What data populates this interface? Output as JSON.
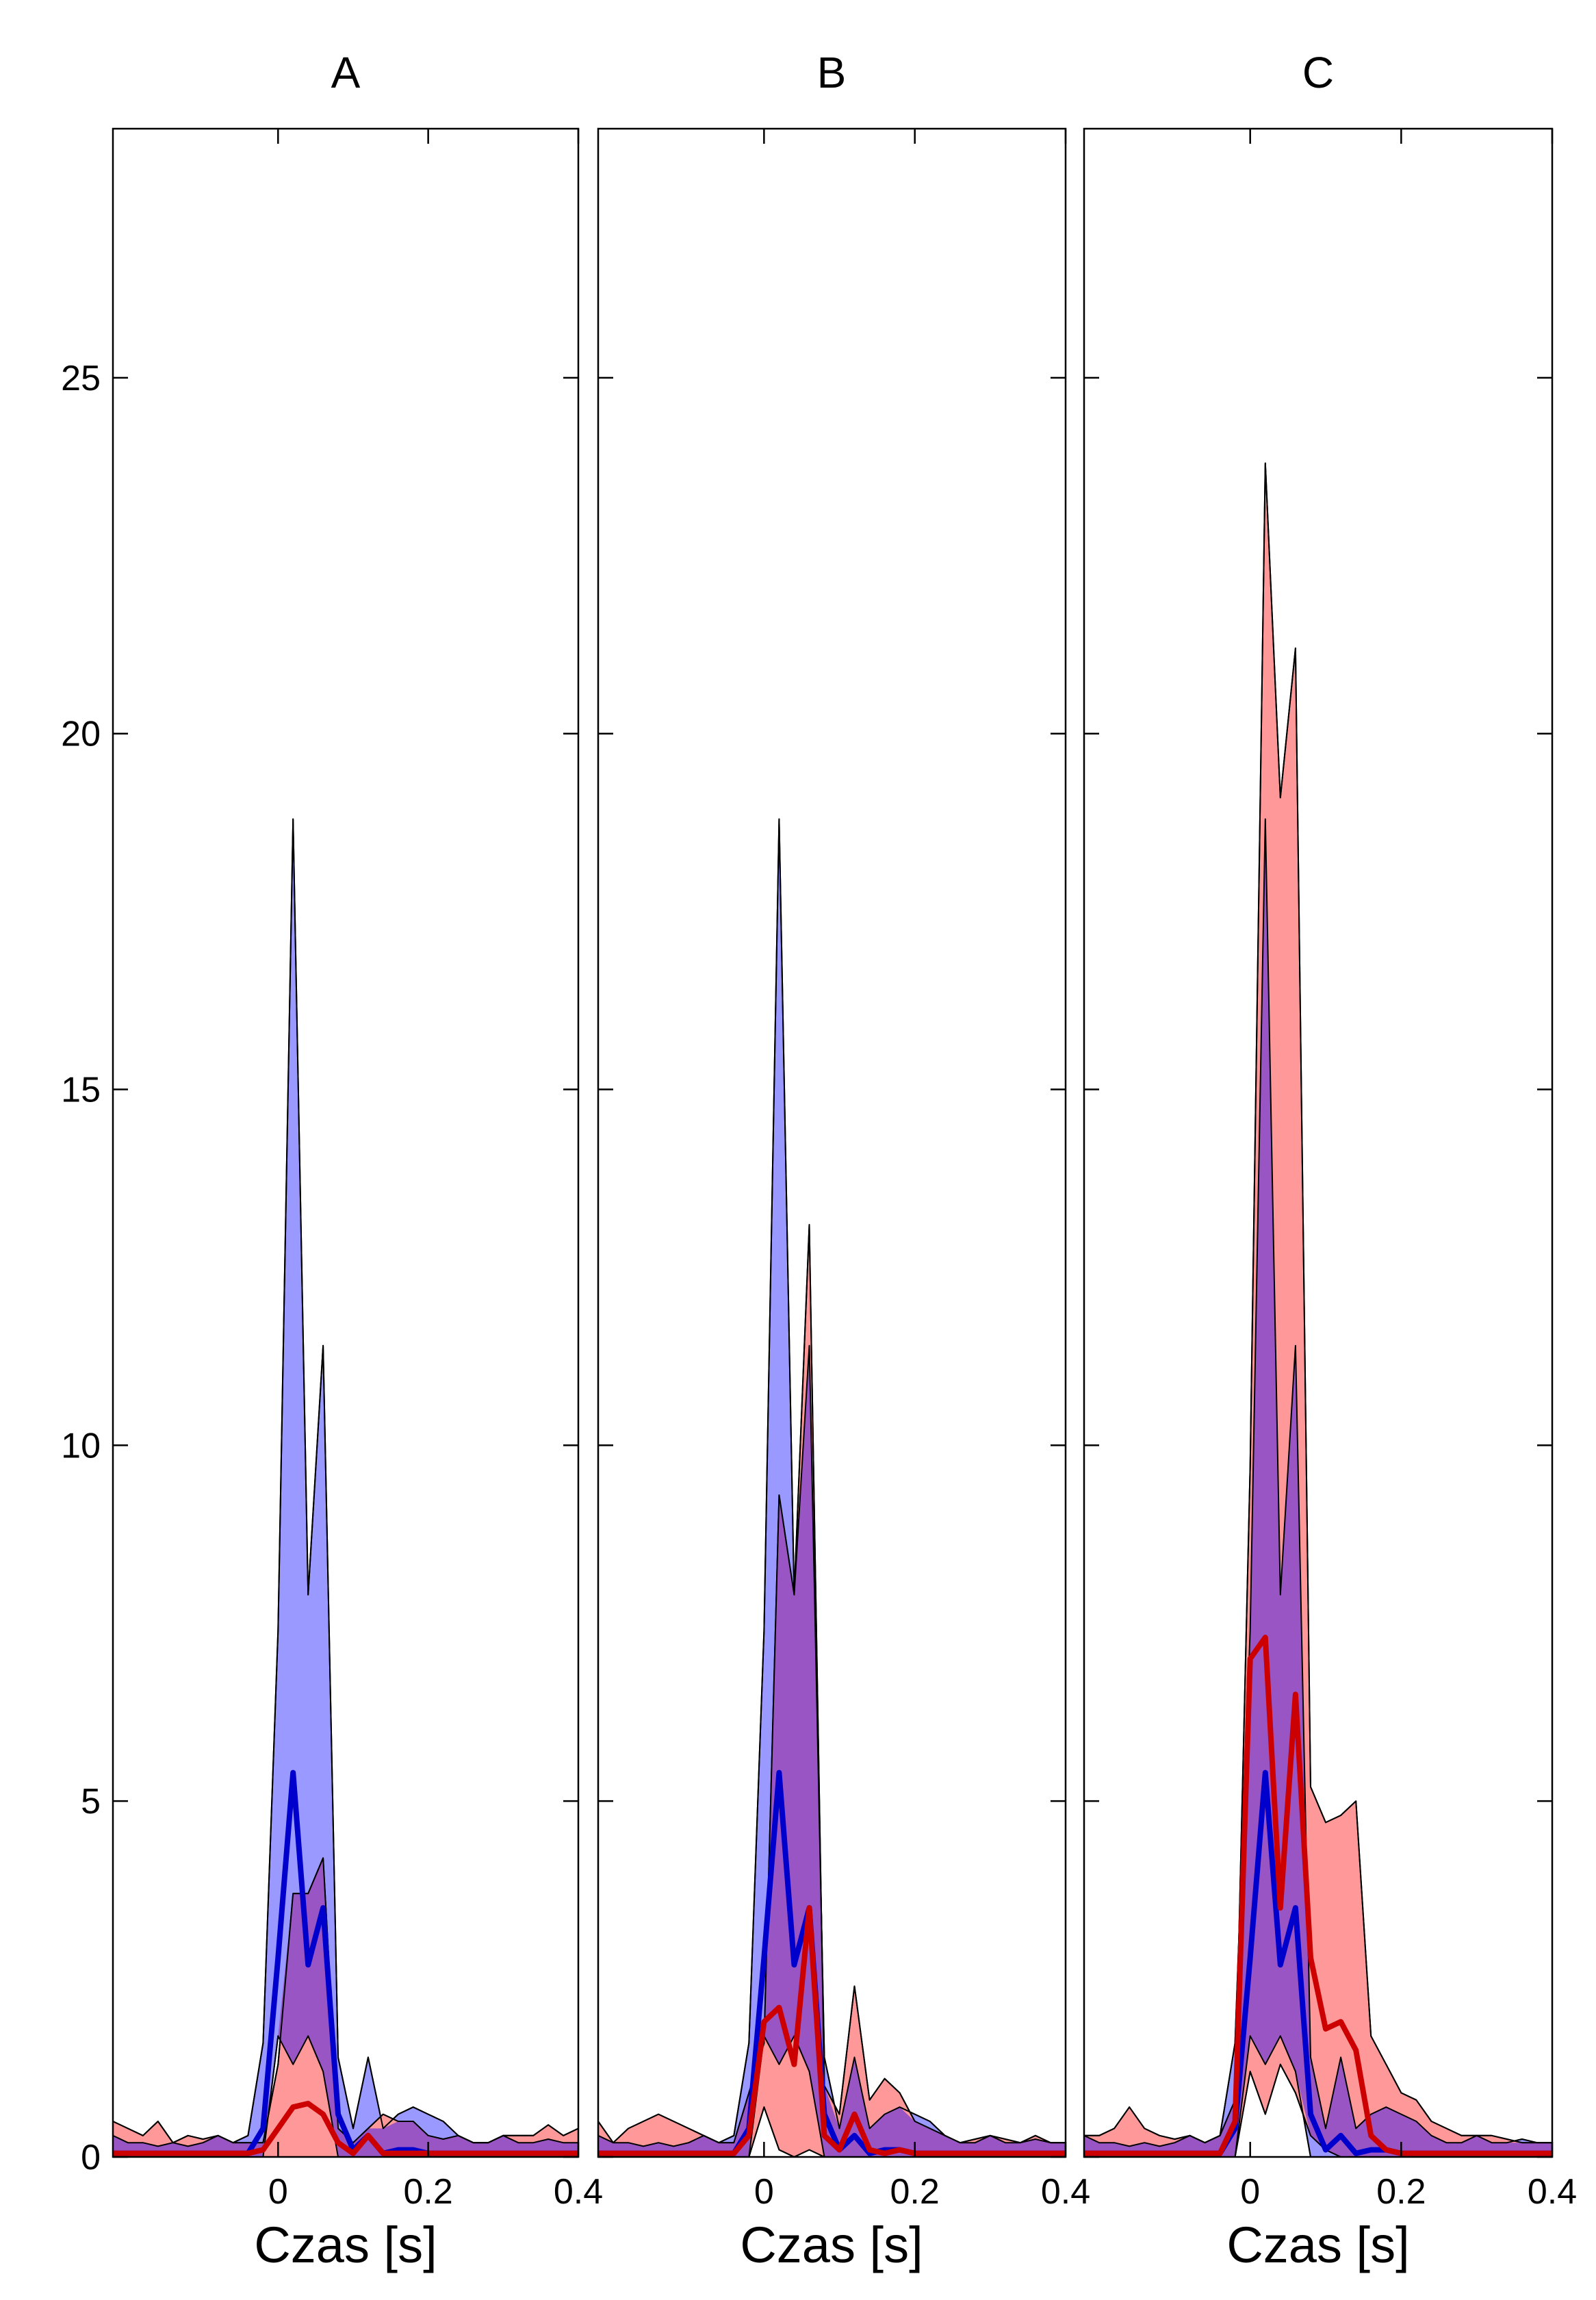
{
  "colors": {
    "blue_fill": "#9999ff",
    "red_fill": "#ff9999",
    "overlap_fill": "#9955c4",
    "blue_line": "#0000cc",
    "red_line": "#cc0000",
    "outline": "#000000"
  },
  "chart_data": [
    {
      "type": "area",
      "title": "A",
      "xlabel": "Czas [s]",
      "ylabel": "",
      "xlim": [
        -0.22,
        0.4
      ],
      "ylim": [
        0,
        28.5
      ],
      "x_ticks": [
        0,
        0.2,
        0.4
      ],
      "x_tick_labels": [
        "0",
        "0.2",
        "0.4"
      ],
      "y_ticks": [
        0,
        5,
        10,
        15,
        20,
        25
      ],
      "y_tick_labels": [
        "0",
        "5",
        "10",
        "15",
        "20",
        "25"
      ],
      "show_y_tick_labels": true,
      "x": [
        -0.22,
        -0.2,
        -0.18,
        -0.16,
        -0.14,
        -0.12,
        -0.1,
        -0.08,
        -0.06,
        -0.04,
        -0.02,
        0.0,
        0.02,
        0.04,
        0.06,
        0.08,
        0.1,
        0.12,
        0.14,
        0.16,
        0.18,
        0.2,
        0.22,
        0.24,
        0.26,
        0.28,
        0.3,
        0.32,
        0.34,
        0.36,
        0.38,
        0.4
      ],
      "series": [
        {
          "color": "blue",
          "mean": [
            0.05,
            0.05,
            0.05,
            0.05,
            0.05,
            0.05,
            0.05,
            0.05,
            0.05,
            0.05,
            0.4,
            2.8,
            5.4,
            2.7,
            3.5,
            0.6,
            0.1,
            0.3,
            0.05,
            0.1,
            0.1,
            0.05,
            0.05,
            0.05,
            0.05,
            0.05,
            0.05,
            0.05,
            0.05,
            0.05,
            0.05,
            0.05
          ],
          "upper": [
            0.3,
            0.2,
            0.2,
            0.15,
            0.2,
            0.15,
            0.2,
            0.3,
            0.2,
            0.3,
            1.6,
            7.4,
            18.8,
            7.9,
            11.4,
            1.4,
            0.4,
            1.4,
            0.4,
            0.6,
            0.7,
            0.6,
            0.5,
            0.3,
            0.2,
            0.2,
            0.3,
            0.2,
            0.2,
            0.25,
            0.2,
            0.2
          ],
          "lower": [
            0.0,
            0.0,
            0.0,
            0.0,
            0.0,
            0.0,
            0.0,
            0.0,
            0.0,
            0.0,
            0.0,
            1.7,
            1.3,
            1.7,
            1.2,
            0.0,
            0.0,
            0.0,
            0.0,
            0.0,
            0.0,
            0.0,
            0.0,
            0.0,
            0.0,
            0.0,
            0.0,
            0.0,
            0.0,
            0.0,
            0.0,
            0.0
          ]
        },
        {
          "color": "red",
          "mean": [
            0.05,
            0.05,
            0.05,
            0.05,
            0.05,
            0.05,
            0.05,
            0.05,
            0.05,
            0.05,
            0.1,
            0.4,
            0.7,
            0.75,
            0.6,
            0.2,
            0.05,
            0.3,
            0.05,
            0.05,
            0.05,
            0.05,
            0.05,
            0.05,
            0.05,
            0.05,
            0.05,
            0.05,
            0.05,
            0.05,
            0.05,
            0.05
          ],
          "upper": [
            0.5,
            0.4,
            0.3,
            0.5,
            0.2,
            0.3,
            0.25,
            0.3,
            0.2,
            0.2,
            0.2,
            1.3,
            3.7,
            3.7,
            4.2,
            0.4,
            0.2,
            0.4,
            0.6,
            0.5,
            0.5,
            0.3,
            0.25,
            0.3,
            0.2,
            0.2,
            0.3,
            0.3,
            0.3,
            0.45,
            0.3,
            0.4
          ],
          "lower": [
            0.0,
            0.0,
            0.0,
            0.0,
            0.0,
            0.0,
            0.0,
            0.0,
            0.0,
            0.0,
            0.0,
            0.0,
            0.0,
            0.0,
            0.0,
            0.0,
            0.0,
            0.0,
            0.0,
            0.0,
            0.0,
            0.0,
            0.0,
            0.0,
            0.0,
            0.0,
            0.0,
            0.0,
            0.0,
            0.0,
            0.0,
            0.0
          ]
        }
      ]
    },
    {
      "type": "area",
      "title": "B",
      "xlabel": "Czas [s]",
      "ylabel": "",
      "xlim": [
        -0.22,
        0.4
      ],
      "ylim": [
        0,
        28.5
      ],
      "x_ticks": [
        0,
        0.2,
        0.4
      ],
      "x_tick_labels": [
        "0",
        "0.2",
        "0.4"
      ],
      "y_ticks": [
        0,
        5,
        10,
        15,
        20,
        25
      ],
      "y_tick_labels": [
        "0",
        "5",
        "10",
        "15",
        "20",
        "25"
      ],
      "show_y_tick_labels": false,
      "x": [
        -0.22,
        -0.2,
        -0.18,
        -0.16,
        -0.14,
        -0.12,
        -0.1,
        -0.08,
        -0.06,
        -0.04,
        -0.02,
        0.0,
        0.02,
        0.04,
        0.06,
        0.08,
        0.1,
        0.12,
        0.14,
        0.16,
        0.18,
        0.2,
        0.22,
        0.24,
        0.26,
        0.28,
        0.3,
        0.32,
        0.34,
        0.36,
        0.38,
        0.4
      ],
      "series": [
        {
          "color": "blue",
          "mean": [
            0.05,
            0.05,
            0.05,
            0.05,
            0.05,
            0.05,
            0.05,
            0.05,
            0.05,
            0.05,
            0.4,
            2.8,
            5.4,
            2.7,
            3.5,
            0.6,
            0.1,
            0.3,
            0.05,
            0.1,
            0.1,
            0.05,
            0.05,
            0.05,
            0.05,
            0.05,
            0.05,
            0.05,
            0.05,
            0.05,
            0.05,
            0.05
          ],
          "upper": [
            0.3,
            0.2,
            0.2,
            0.15,
            0.2,
            0.15,
            0.2,
            0.3,
            0.2,
            0.3,
            1.6,
            7.4,
            18.8,
            7.9,
            11.4,
            1.4,
            0.4,
            1.4,
            0.4,
            0.6,
            0.7,
            0.6,
            0.5,
            0.3,
            0.2,
            0.2,
            0.3,
            0.2,
            0.2,
            0.25,
            0.2,
            0.2
          ],
          "lower": [
            0.0,
            0.0,
            0.0,
            0.0,
            0.0,
            0.0,
            0.0,
            0.0,
            0.0,
            0.0,
            0.0,
            1.7,
            1.3,
            1.7,
            1.2,
            0.0,
            0.0,
            0.0,
            0.0,
            0.0,
            0.0,
            0.0,
            0.0,
            0.0,
            0.0,
            0.0,
            0.0,
            0.0,
            0.0,
            0.0,
            0.0,
            0.0
          ]
        },
        {
          "color": "red",
          "mean": [
            0.05,
            0.05,
            0.05,
            0.05,
            0.05,
            0.05,
            0.05,
            0.05,
            0.05,
            0.05,
            0.3,
            1.9,
            2.1,
            1.3,
            3.5,
            0.3,
            0.1,
            0.6,
            0.1,
            0.05,
            0.1,
            0.05,
            0.05,
            0.05,
            0.05,
            0.05,
            0.05,
            0.05,
            0.05,
            0.05,
            0.05,
            0.05
          ],
          "upper": [
            0.5,
            0.2,
            0.4,
            0.5,
            0.6,
            0.5,
            0.4,
            0.3,
            0.2,
            0.2,
            0.9,
            1.6,
            9.3,
            7.9,
            13.1,
            1.0,
            0.6,
            2.4,
            0.8,
            1.1,
            0.9,
            0.5,
            0.4,
            0.3,
            0.2,
            0.25,
            0.3,
            0.25,
            0.2,
            0.3,
            0.2,
            0.2
          ],
          "lower": [
            0.0,
            0.0,
            0.0,
            0.0,
            0.0,
            0.0,
            0.0,
            0.0,
            0.0,
            0.0,
            0.0,
            0.7,
            0.1,
            0.0,
            0.1,
            0.0,
            0.0,
            0.0,
            0.0,
            0.0,
            0.0,
            0.0,
            0.0,
            0.0,
            0.0,
            0.0,
            0.0,
            0.0,
            0.0,
            0.0,
            0.0,
            0.0
          ]
        }
      ]
    },
    {
      "type": "area",
      "title": "C",
      "xlabel": "Czas [s]",
      "ylabel": "",
      "xlim": [
        -0.22,
        0.4
      ],
      "ylim": [
        0,
        28.5
      ],
      "x_ticks": [
        0,
        0.2,
        0.4
      ],
      "x_tick_labels": [
        "0",
        "0.2",
        "0.4"
      ],
      "y_ticks": [
        0,
        5,
        10,
        15,
        20,
        25
      ],
      "y_tick_labels": [
        "0",
        "5",
        "10",
        "15",
        "20",
        "25"
      ],
      "show_y_tick_labels": false,
      "x": [
        -0.22,
        -0.2,
        -0.18,
        -0.16,
        -0.14,
        -0.12,
        -0.1,
        -0.08,
        -0.06,
        -0.04,
        -0.02,
        0.0,
        0.02,
        0.04,
        0.06,
        0.08,
        0.1,
        0.12,
        0.14,
        0.16,
        0.18,
        0.2,
        0.22,
        0.24,
        0.26,
        0.28,
        0.3,
        0.32,
        0.34,
        0.36,
        0.38,
        0.4
      ],
      "series": [
        {
          "color": "blue",
          "mean": [
            0.05,
            0.05,
            0.05,
            0.05,
            0.05,
            0.05,
            0.05,
            0.05,
            0.05,
            0.05,
            0.4,
            2.8,
            5.4,
            2.7,
            3.5,
            0.6,
            0.1,
            0.3,
            0.05,
            0.1,
            0.1,
            0.05,
            0.05,
            0.05,
            0.05,
            0.05,
            0.05,
            0.05,
            0.05,
            0.05,
            0.05,
            0.05
          ],
          "upper": [
            0.3,
            0.2,
            0.2,
            0.15,
            0.2,
            0.15,
            0.2,
            0.3,
            0.2,
            0.3,
            1.6,
            7.4,
            18.8,
            7.9,
            11.4,
            1.4,
            0.4,
            1.4,
            0.4,
            0.6,
            0.7,
            0.6,
            0.5,
            0.3,
            0.2,
            0.2,
            0.3,
            0.2,
            0.2,
            0.25,
            0.2,
            0.2
          ],
          "lower": [
            0.0,
            0.0,
            0.0,
            0.0,
            0.0,
            0.0,
            0.0,
            0.0,
            0.0,
            0.0,
            0.0,
            1.7,
            1.3,
            1.7,
            1.2,
            0.0,
            0.0,
            0.0,
            0.0,
            0.0,
            0.0,
            0.0,
            0.0,
            0.0,
            0.0,
            0.0,
            0.0,
            0.0,
            0.0,
            0.0,
            0.0,
            0.0
          ]
        },
        {
          "color": "red",
          "mean": [
            0.05,
            0.05,
            0.05,
            0.05,
            0.05,
            0.05,
            0.05,
            0.05,
            0.05,
            0.05,
            0.5,
            7.0,
            7.3,
            3.5,
            6.5,
            2.8,
            1.8,
            1.9,
            1.5,
            0.3,
            0.1,
            0.05,
            0.05,
            0.05,
            0.05,
            0.05,
            0.05,
            0.05,
            0.05,
            0.05,
            0.05,
            0.05
          ],
          "upper": [
            0.3,
            0.3,
            0.4,
            0.7,
            0.4,
            0.3,
            0.25,
            0.3,
            0.2,
            0.3,
            0.8,
            9.7,
            23.8,
            19.1,
            21.2,
            5.2,
            4.7,
            4.8,
            5.0,
            1.7,
            1.3,
            0.9,
            0.8,
            0.5,
            0.4,
            0.3,
            0.3,
            0.3,
            0.25,
            0.2,
            0.2,
            0.2
          ],
          "lower": [
            0.0,
            0.0,
            0.0,
            0.0,
            0.0,
            0.0,
            0.0,
            0.0,
            0.0,
            0.0,
            0.0,
            1.2,
            0.6,
            1.3,
            0.9,
            0.3,
            0.1,
            0.0,
            0.0,
            0.0,
            0.0,
            0.0,
            0.0,
            0.0,
            0.0,
            0.0,
            0.0,
            0.0,
            0.0,
            0.0,
            0.0,
            0.0
          ]
        }
      ]
    }
  ]
}
